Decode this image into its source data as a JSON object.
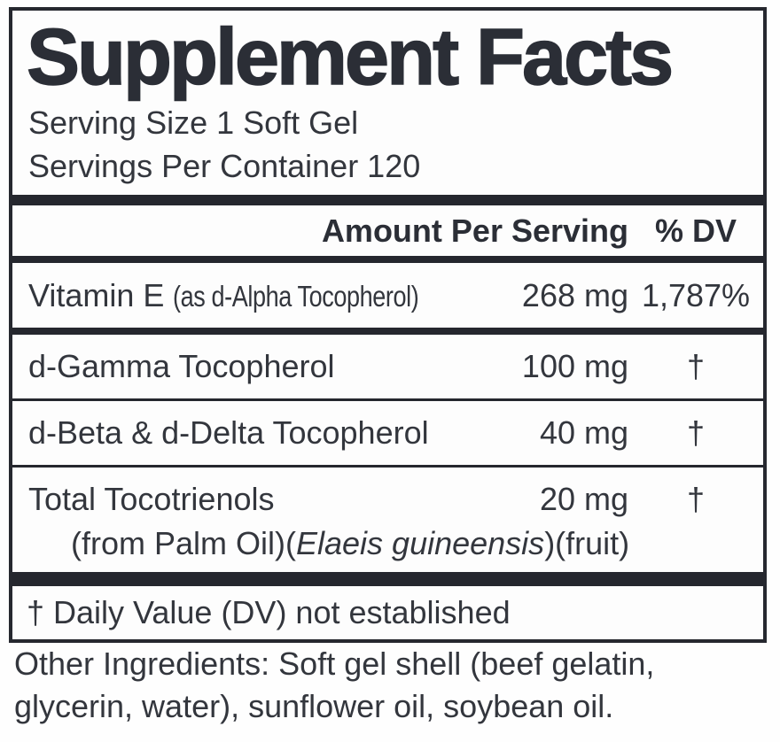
{
  "label": {
    "title": "Supplement Facts",
    "serving_size": "Serving Size 1 Soft Gel",
    "servings_per_container": "Servings Per Container 120",
    "header": {
      "amount_col": "Amount Per Serving",
      "dv_col": "% DV"
    },
    "rows": [
      {
        "name": "Vitamin E",
        "name_note": "(as d-Alpha Tocopherol)",
        "amount": "268 mg",
        "dv": "1,787%"
      },
      {
        "name": "d-Gamma Tocopherol",
        "amount": "100 mg",
        "dv": "†"
      },
      {
        "name": "d-Beta & d-Delta Tocopherol",
        "amount": "40 mg",
        "dv": "†"
      },
      {
        "name": "Total Tocotrienols",
        "amount": "20 mg",
        "dv": "†",
        "sub_prefix": "(from Palm Oil)(",
        "sub_italic": "Elaeis guineensis",
        "sub_suffix": ")(fruit)"
      }
    ],
    "footnote": "† Daily Value (DV) not established",
    "other_ingredients": "Other Ingredients: Soft gel shell (beef gelatin, glycerin, water), sunflower oil, soybean oil."
  },
  "colors": {
    "ink": "#33363d",
    "bar": "#25272e",
    "background": "#fdfdfd"
  }
}
